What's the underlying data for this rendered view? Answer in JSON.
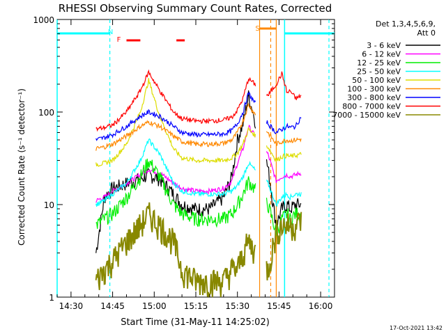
{
  "chart_data": {
    "type": "line",
    "title": "RHESSI Observing Summary Count Rates, Corrected",
    "xlabel": "Start Time (31-May-11 14:25:02)",
    "ylabel": "Corrected Count Rate (s⁻¹ detector⁻¹)",
    "yscale": "log",
    "ylim": [
      1,
      1000
    ],
    "xlim_minutes": [
      0,
      100
    ],
    "x_tick_labels": [
      "14:30",
      "14:45",
      "15:00",
      "15:15",
      "15:30",
      "15:45",
      "16:00"
    ],
    "x_tick_minutes": [
      5,
      20,
      35,
      50,
      65,
      80,
      95
    ],
    "y_tick_labels": [
      "1",
      "10",
      "100",
      "1000"
    ],
    "y_tick_values": [
      1,
      10,
      100,
      1000
    ],
    "legend_title": [
      "Det 1,3,4,5,6,9,",
      "Att 0"
    ],
    "legend_position": "right",
    "timestamp": "17-Oct-2021 13:42",
    "series": [
      {
        "name": "3 - 6 keV",
        "color": "#000000",
        "x": [
          14,
          17,
          20,
          25,
          30,
          33,
          37,
          42,
          45,
          50,
          55,
          60,
          63,
          65,
          67,
          69,
          76,
          79,
          81,
          83,
          84,
          86,
          88
        ],
        "y": [
          3,
          12,
          15,
          17,
          19,
          21,
          19,
          13,
          10,
          9,
          9,
          12,
          20,
          50,
          75,
          150,
          25,
          6,
          9,
          10,
          9,
          10,
          10
        ]
      },
      {
        "name": "6 - 12 keV",
        "color": "#ff00ff",
        "x": [
          14,
          17,
          20,
          25,
          30,
          33,
          37,
          42,
          45,
          50,
          55,
          60,
          63,
          65,
          67,
          69,
          76,
          79,
          81,
          83,
          84,
          86,
          88
        ],
        "y": [
          11,
          12,
          14,
          17,
          21,
          24,
          22,
          17,
          15,
          14,
          14,
          15,
          18,
          28,
          40,
          70,
          35,
          18,
          20,
          21,
          20,
          21,
          22
        ]
      },
      {
        "name": "12 - 25 keV",
        "color": "#00ee00",
        "x": [
          14,
          17,
          20,
          25,
          30,
          33,
          37,
          42,
          45,
          50,
          55,
          60,
          63,
          65,
          67,
          69,
          76,
          79,
          81,
          83,
          84,
          86,
          88
        ],
        "y": [
          6,
          7,
          8,
          12,
          20,
          30,
          20,
          10,
          8,
          7,
          7,
          7,
          8,
          10,
          13,
          18,
          10,
          5,
          7,
          8,
          7,
          8,
          8
        ]
      },
      {
        "name": "25 - 50 keV",
        "color": "#00ffff",
        "x": [
          14,
          17,
          20,
          25,
          30,
          33,
          37,
          42,
          45,
          50,
          55,
          60,
          63,
          65,
          67,
          69,
          76,
          79,
          81,
          83,
          84,
          86,
          88
        ],
        "y": [
          10,
          11,
          13,
          17,
          30,
          50,
          35,
          17,
          14,
          13,
          13,
          13,
          14,
          16,
          20,
          28,
          17,
          10,
          12,
          13,
          12,
          13,
          13
        ]
      },
      {
        "name": "50 - 100 keV",
        "color": "#dddd00",
        "x": [
          14,
          17,
          20,
          25,
          30,
          33,
          37,
          42,
          45,
          50,
          55,
          60,
          63,
          65,
          67,
          69,
          76,
          79,
          81,
          83,
          84,
          86,
          88
        ],
        "y": [
          27,
          28,
          30,
          45,
          100,
          220,
          90,
          40,
          32,
          30,
          30,
          30,
          32,
          36,
          45,
          65,
          42,
          30,
          33,
          34,
          33,
          34,
          35
        ]
      },
      {
        "name": "100 - 300 keV",
        "color": "#ff8800",
        "x": [
          14,
          17,
          20,
          25,
          30,
          33,
          37,
          42,
          45,
          50,
          55,
          60,
          63,
          65,
          67,
          69,
          76,
          79,
          81,
          83,
          84,
          86,
          88
        ],
        "y": [
          40,
          42,
          45,
          55,
          70,
          78,
          70,
          55,
          48,
          45,
          45,
          46,
          50,
          60,
          80,
          120,
          60,
          45,
          48,
          50,
          49,
          50,
          51
        ]
      },
      {
        "name": "300 - 800 keV",
        "color": "#0000ff",
        "x": [
          14,
          17,
          20,
          25,
          30,
          33,
          37,
          42,
          45,
          50,
          55,
          60,
          63,
          65,
          67,
          69,
          76,
          79,
          81,
          83,
          84,
          86,
          88
        ],
        "y": [
          50,
          53,
          57,
          70,
          90,
          100,
          90,
          70,
          60,
          57,
          57,
          58,
          63,
          75,
          100,
          160,
          75,
          60,
          65,
          70,
          68,
          70,
          90
        ]
      },
      {
        "name": "800 - 7000 keV",
        "color": "#ff0000",
        "x": [
          14,
          17,
          20,
          25,
          30,
          33,
          37,
          42,
          45,
          50,
          55,
          60,
          63,
          65,
          67,
          69,
          76,
          79,
          81,
          83,
          84,
          86,
          88
        ],
        "y": [
          65,
          68,
          72,
          100,
          170,
          270,
          170,
          100,
          85,
          80,
          80,
          82,
          88,
          105,
          140,
          230,
          150,
          200,
          260,
          160,
          170,
          140,
          150
        ]
      },
      {
        "name": "7000 - 15000 keV",
        "color": "#888800",
        "x": [
          14,
          17,
          20,
          25,
          30,
          33,
          37,
          42,
          45,
          50,
          55,
          60,
          63,
          65,
          67,
          69,
          76,
          79,
          81,
          83,
          84,
          86,
          88
        ],
        "y": [
          1.5,
          2,
          2.5,
          4,
          6,
          8,
          6,
          4,
          2,
          1.5,
          1.5,
          1.5,
          2,
          2,
          3,
          4,
          2,
          5,
          6,
          6,
          6,
          6,
          7
        ]
      }
    ],
    "annotations": [
      {
        "label": "N",
        "x_minutes": 19,
        "color": "#00ffff"
      },
      {
        "label": "F",
        "x_minutes": 22,
        "color": "#ff0000"
      },
      {
        "label": "S",
        "x_minutes": 72,
        "color": "#ff8800"
      }
    ],
    "f_bars_minutes": [
      [
        25,
        30
      ],
      [
        43,
        46
      ]
    ],
    "s_bar_minutes": [
      73,
      79
    ],
    "cyan_top_segments_minutes": [
      [
        0,
        19
      ],
      [
        82,
        100
      ]
    ],
    "cyan_lines_minutes": {
      "solid": [
        0,
        82
      ],
      "dashed": [
        19,
        98
      ]
    },
    "orange_lines_minutes": {
      "solid": [
        73,
        79
      ],
      "dashed": [
        77
      ]
    }
  }
}
